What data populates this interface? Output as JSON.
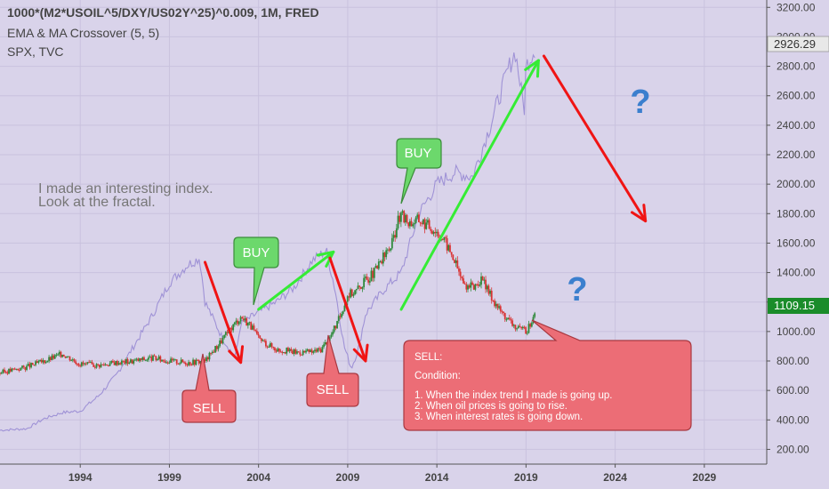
{
  "legend": {
    "title": "1000*(M2*USOIL^5/DXY/US02Y^25)^0.009, 1M, FRED",
    "line2": "EMA & MA Crossover (5, 5)",
    "line3": "SPX, TVC"
  },
  "note_lines": [
    "I made an interesting index.",
    "Look at the fractal."
  ],
  "callouts": {
    "buy": "BUY",
    "sell": "SELL",
    "question": "?",
    "sell_box_lines": [
      "SELL:",
      "",
      "Condition:",
      "",
      "1. When the index trend I made is going up.",
      "2. When oil prices is going to rise.",
      "3. When interest rates is going down."
    ]
  },
  "price_tags": {
    "spx": "2926.29",
    "index": "1109.15"
  },
  "colors": {
    "background": "#d9d3ea",
    "grid": "#c9c2de",
    "spx_line": "#9f92d6",
    "candle_up": "#2f8a3b",
    "candle_down": "#d93434",
    "buy_fill": "#6cd86c",
    "sell_fill": "#ec6d76",
    "green_arrow": "#35ec35",
    "red_arrow": "#f01414",
    "question": "#3b7fce",
    "spx_tag": "#e8e8e8",
    "index_tag": "#1a8c2a"
  },
  "chart_data": {
    "type": "line",
    "ylim": [
      100,
      3250
    ],
    "yticks": [
      "3200.00",
      "3000.00",
      "2800.00",
      "2600.00",
      "2400.00",
      "2200.00",
      "2000.00",
      "1800.00",
      "1600.00",
      "1400.00",
      "1200.00",
      "1000.00",
      "800.00",
      "600.00",
      "400.00",
      "200.00"
    ],
    "xlim": [
      1989.5,
      2032.5
    ],
    "xticks": [
      "1994",
      "1999",
      "2004",
      "2009",
      "2014",
      "2019",
      "2024",
      "2029"
    ],
    "series": [
      {
        "name": "1000*(M2*USOIL^5/DXY/US02Y^25)^0.009",
        "x": [
          1989.5,
          1991,
          1992,
          1993,
          1994,
          1995,
          1996,
          1997,
          1998,
          1999,
          2000,
          2001,
          2002,
          2002.5,
          2003,
          2003.5,
          2004,
          2005,
          2006,
          2007,
          2007.5,
          2008,
          2008.5,
          2009,
          2009.5,
          2010,
          2010.5,
          2011,
          2011.5,
          2011.8,
          2012,
          2012.5,
          2013,
          2013.5,
          2014,
          2014.5,
          2015,
          2015.5,
          2016,
          2016.5,
          2017,
          2017.5,
          2018,
          2018.5,
          2019,
          2019.5
        ],
        "values": [
          720,
          760,
          800,
          850,
          780,
          770,
          790,
          800,
          820,
          800,
          790,
          800,
          950,
          1030,
          1100,
          1050,
          950,
          880,
          860,
          860,
          880,
          960,
          1080,
          1250,
          1280,
          1350,
          1400,
          1500,
          1600,
          1750,
          1780,
          1740,
          1760,
          1720,
          1680,
          1600,
          1480,
          1320,
          1300,
          1350,
          1250,
          1150,
          1080,
          1020,
          1000,
          1109
        ]
      },
      {
        "name": "SPX",
        "x": [
          1989.5,
          1991,
          1992,
          1993,
          1994,
          1995,
          1996,
          1997,
          1998,
          1999,
          2000,
          2000.7,
          2001,
          2002,
          2002.7,
          2003,
          2004,
          2005,
          2006,
          2007,
          2007.8,
          2008.3,
          2008.8,
          2009.2,
          2009.6,
          2010,
          2011,
          2012,
          2013,
          2014,
          2015,
          2016,
          2017,
          2018,
          2018.4,
          2018.9,
          2019,
          2019.5
        ],
        "values": [
          330,
          340,
          410,
          450,
          460,
          560,
          700,
          900,
          1100,
          1330,
          1450,
          1500,
          1200,
          950,
          820,
          1050,
          1130,
          1200,
          1300,
          1480,
          1550,
          1280,
          900,
          750,
          880,
          1120,
          1280,
          1400,
          1800,
          2000,
          2080,
          2050,
          2400,
          2780,
          2900,
          2500,
          2800,
          2926
        ]
      }
    ],
    "annotations": [
      {
        "text": "BUY",
        "x": 2003.3,
        "y": 1120
      },
      {
        "text": "BUY",
        "x": 2011.7,
        "y": 1820
      },
      {
        "text": "SELL",
        "x": 2000.5,
        "y": 790
      },
      {
        "text": "SELL",
        "x": 2007.8,
        "y": 880
      },
      {
        "text": "SELL",
        "x": 2019.0,
        "y": 1000
      }
    ],
    "trend_arrows": [
      {
        "color": "red",
        "from": [
          2001.0,
          1470
        ],
        "to": [
          2003.0,
          790
        ]
      },
      {
        "color": "green",
        "from": [
          2004.0,
          1150
        ],
        "to": [
          2008.2,
          1540
        ]
      },
      {
        "color": "red",
        "from": [
          2008.0,
          1500
        ],
        "to": [
          2010.0,
          800
        ]
      },
      {
        "color": "green",
        "from": [
          2012.0,
          1150
        ],
        "to": [
          2019.7,
          2840
        ]
      },
      {
        "color": "red",
        "from": [
          2020.0,
          2870
        ],
        "to": [
          2025.7,
          1750
        ]
      }
    ],
    "grid": true,
    "legend": "top-left"
  }
}
